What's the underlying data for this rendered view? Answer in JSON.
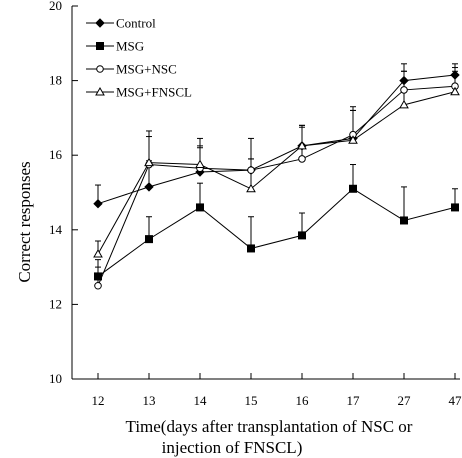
{
  "chart_data": {
    "type": "line",
    "x_categories": [
      "12",
      "13",
      "14",
      "15",
      "16",
      "17",
      "27",
      "47"
    ],
    "ylabel": "Correct responses",
    "xlabel_line1": "Time(days after transplantation of NSC or",
    "xlabel_line2": "injection of FNSCL)",
    "ylim": [
      10,
      20
    ],
    "y_ticks": [
      "10",
      "12",
      "14",
      "16",
      "18",
      "20"
    ],
    "legend_position": "top-left",
    "grid": false,
    "error_bars": "positive only",
    "series": [
      {
        "name": "Control",
        "marker": "diamond-filled",
        "values": [
          14.7,
          15.15,
          15.55,
          15.6,
          16.25,
          16.45,
          18.0,
          18.15
        ],
        "errors": [
          0.5,
          0.7,
          0.65,
          0.3,
          0.55,
          0.75,
          0.45,
          0.3
        ]
      },
      {
        "name": "MSG",
        "marker": "square-filled",
        "values": [
          12.75,
          13.75,
          14.6,
          13.5,
          13.85,
          15.1,
          14.25,
          14.6
        ],
        "errors": [
          0.45,
          0.6,
          0.65,
          0.85,
          0.6,
          0.65,
          0.9,
          0.5
        ]
      },
      {
        "name": "MSG+NSC",
        "marker": "circle-open",
        "values": [
          12.5,
          15.75,
          15.65,
          15.6,
          15.9,
          16.55,
          17.75,
          17.85
        ],
        "errors": [
          0.5,
          0.9,
          0.6,
          0.85,
          0.9,
          0.75,
          0.5,
          0.5
        ]
      },
      {
        "name": "MSG+FNSCL",
        "marker": "triangle-open",
        "values": [
          13.35,
          15.8,
          15.75,
          15.1,
          16.25,
          16.4,
          17.35,
          17.7
        ],
        "errors": [
          0.35,
          0.7,
          0.7,
          0.8,
          0.5,
          0.8,
          0.9,
          0.55
        ]
      }
    ]
  }
}
